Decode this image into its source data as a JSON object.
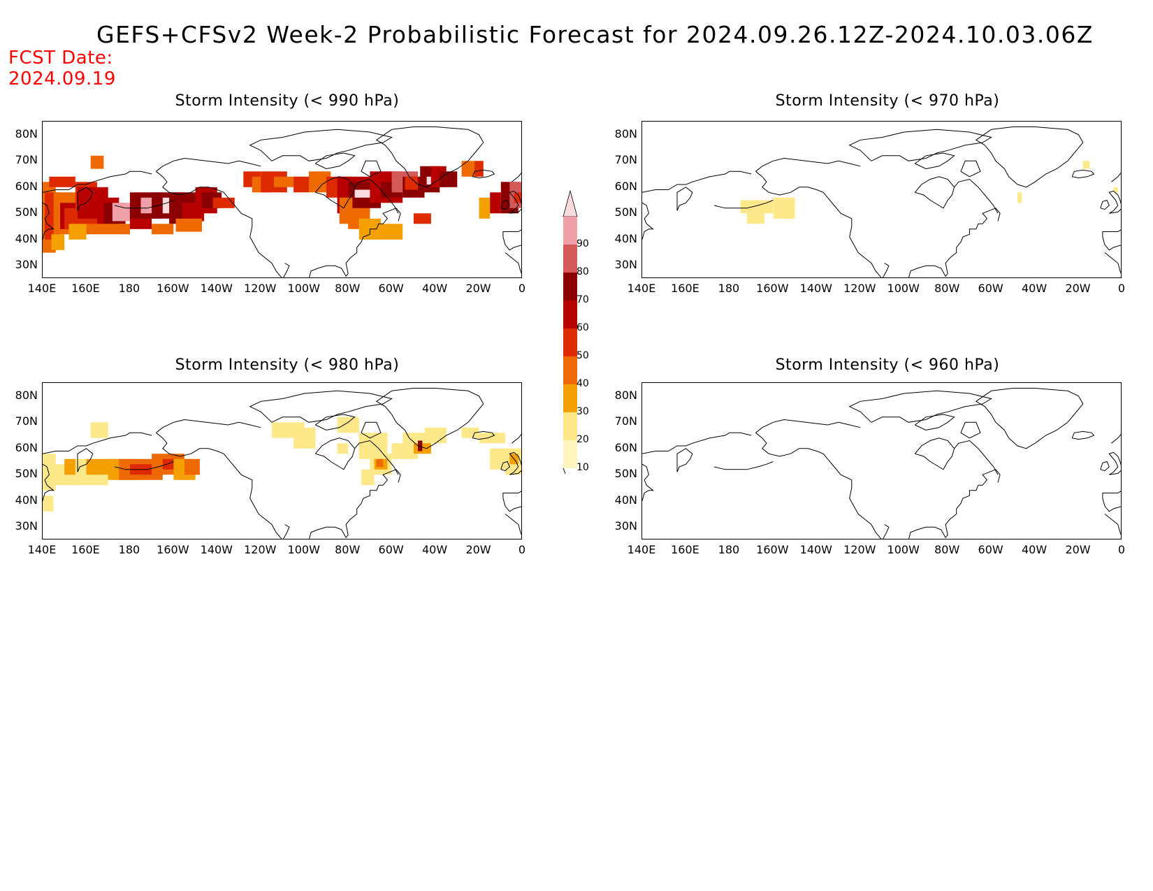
{
  "title": "GEFS+CFSv2 Week-2 Probabilistic Forecast for 2024.09.26.12Z-2024.10.03.06Z",
  "fcst_date": {
    "label": "FCST Date:",
    "value": "2024.09.19"
  },
  "panels": [
    {
      "id": "p990",
      "title": "Storm Intensity (< 990 hPa)"
    },
    {
      "id": "p970",
      "title": "Storm Intensity (< 970 hPa)"
    },
    {
      "id": "p980",
      "title": "Storm Intensity (< 980 hPa)"
    },
    {
      "id": "p960",
      "title": "Storm Intensity (< 960 hPa)"
    }
  ],
  "lat_labels": [
    "80N",
    "70N",
    "60N",
    "50N",
    "40N",
    "30N"
  ],
  "lon_labels": [
    "140E",
    "160E",
    "180",
    "160W",
    "140W",
    "120W",
    "100W",
    "80W",
    "60W",
    "40W",
    "20W",
    "0"
  ],
  "colorbar": {
    "levels": [
      "10",
      "20",
      "30",
      "40",
      "50",
      "60",
      "70",
      "80",
      "90"
    ],
    "colors": [
      "#fff6bf",
      "#fde88a",
      "#f4a000",
      "#ee6a00",
      "#de2a00",
      "#b80000",
      "#8b0000",
      "#d45a5a",
      "#f0a0a8",
      "#fbdbe0"
    ]
  },
  "chart_data": {
    "type": "heatmap",
    "units": "probability (%)",
    "lon_range": [
      "140E",
      "0"
    ],
    "lat_range": [
      "25N",
      "85N"
    ],
    "features": [
      {
        "panel": "< 990 hPa",
        "region": "North Pacific (160E-140W, 45-58N)",
        "prob_max": 80
      },
      {
        "panel": "< 990 hPa",
        "region": "NW Pacific / Kuril (140E-160E, 40-62N)",
        "prob_max": 60
      },
      {
        "panel": "< 990 hPa",
        "region": "Hudson Bay to Labrador (90W-30W, 45-68N)",
        "prob_max": 80
      },
      {
        "panel": "< 990 hPa",
        "region": "NE Atlantic near UK (15W-0, 50-60N)",
        "prob_max": 70
      },
      {
        "panel": "< 980 hPa",
        "region": "Gulf of Alaska (175W-145W, 48-57N)",
        "prob_max": 40
      },
      {
        "panel": "< 980 hPa",
        "region": "Gulf of St. Lawrence (70W-55W, 50-58N)",
        "prob_max": 40
      },
      {
        "panel": "< 980 hPa",
        "region": "South Greenland tip (48W, 60N)",
        "prob_max": 60
      },
      {
        "panel": "< 970 hPa",
        "region": "Aleutians (175W-150W, 48-55N)",
        "prob_max": 20
      },
      {
        "panel": "< 960 hPa",
        "region": "none",
        "prob_max": 0
      }
    ]
  }
}
